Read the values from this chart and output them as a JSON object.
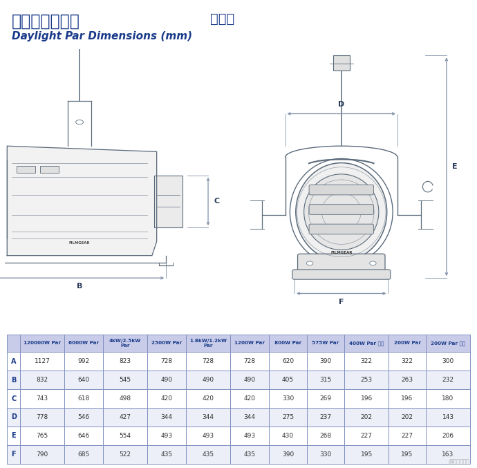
{
  "title_chinese": "高色温直射镝灯  规格表",
  "title_english": "Daylight Par Dimensions (mm)",
  "title_color": "#1a3a8a",
  "bg_color": "#ffffff",
  "table_header_bg": "#c8cce8",
  "table_row_bg_odd": "#ffffff",
  "table_row_bg_even": "#eceef8",
  "table_border_color": "#8090c0",
  "table_header_text": "#1a3a8a",
  "table_data_text": "#333333",
  "table_label_text": "#1a3a8a",
  "columns": [
    "",
    "120000W Par",
    "6000W Par",
    "4kW/2.5kW\nPar",
    "2500W Par",
    "1.8kW/1.2kW\nPar",
    "1200W Par",
    "800W Par",
    "575W Par",
    "400W Par 小型",
    "200W Par",
    "200W Par 小型"
  ],
  "rows": [
    [
      "A",
      "1127",
      "992",
      "823",
      "728",
      "728",
      "728",
      "620",
      "390",
      "322",
      "322",
      "300"
    ],
    [
      "B",
      "832",
      "640",
      "545",
      "490",
      "490",
      "490",
      "405",
      "315",
      "253",
      "263",
      "232"
    ],
    [
      "C",
      "743",
      "618",
      "498",
      "420",
      "420",
      "420",
      "330",
      "269",
      "196",
      "196",
      "180"
    ],
    [
      "D",
      "778",
      "546",
      "427",
      "344",
      "344",
      "344",
      "275",
      "237",
      "202",
      "202",
      "143"
    ],
    [
      "E",
      "765",
      "646",
      "554",
      "493",
      "493",
      "493",
      "430",
      "268",
      "227",
      "227",
      "206"
    ],
    [
      "F",
      "790",
      "685",
      "522",
      "435",
      "435",
      "435",
      "390",
      "330",
      "195",
      "195",
      "163"
    ]
  ],
  "watermark": "@影视工业网",
  "dc": "#5a6a7a",
  "lc": "#2a3a5a",
  "ac": "#8090a8",
  "fig_width": 6.9,
  "fig_height": 6.77,
  "fig_dpi": 100
}
